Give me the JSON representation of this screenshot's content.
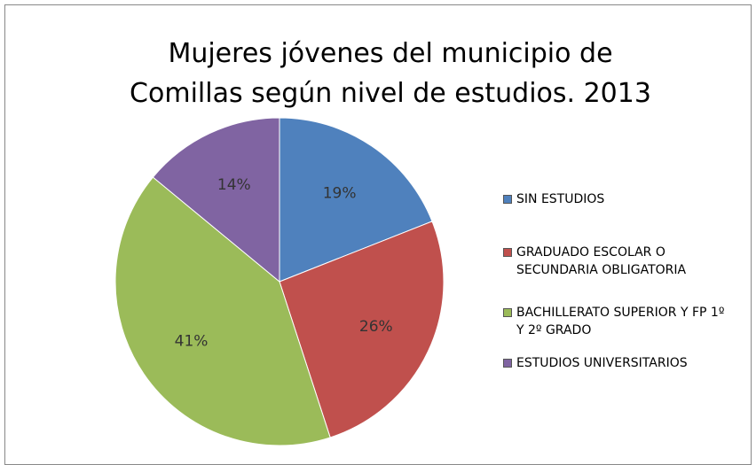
{
  "chart_data": {
    "type": "pie",
    "title": "Mujeres jóvenes del municipio de Comillas según nivel de estudios. 2013",
    "categories": [
      "SIN ESTUDIOS",
      "GRADUADO ESCOLAR O SECUNDARIA OBLIGATORIA",
      "BACHILLERATO SUPERIOR Y FP 1º Y 2º GRADO",
      "ESTUDIOS UNIVERSITARIOS"
    ],
    "values": [
      19,
      26,
      41,
      14
    ],
    "value_labels": [
      "19%",
      "26%",
      "41%",
      "14%"
    ],
    "colors": [
      "#4f81bd",
      "#c0504d",
      "#9bbb59",
      "#8064a2"
    ],
    "legend": "right"
  }
}
